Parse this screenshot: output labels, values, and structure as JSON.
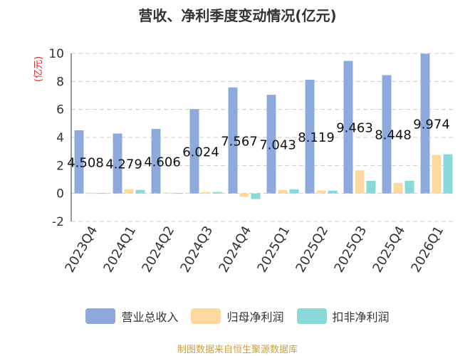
{
  "chart_data": {
    "type": "bar",
    "title": "营收、净利季度变动情况(亿元)",
    "ylabel": "(亿元)",
    "ylim": [
      -2,
      10
    ],
    "yticks": [
      -2,
      0,
      2,
      4,
      6,
      8,
      10
    ],
    "grid": true,
    "legend_position": "bottom",
    "categories": [
      "2023Q4",
      "2024Q1",
      "2024Q2",
      "2024Q3",
      "2024Q4",
      "2025Q1",
      "2025Q2",
      "2025Q3",
      "2025Q4",
      "2026Q1"
    ],
    "series": [
      {
        "name": "营业总收入",
        "color": "#8eaadc",
        "values": [
          4.508,
          4.279,
          4.606,
          6.024,
          7.567,
          7.043,
          8.119,
          9.463,
          8.448,
          9.974
        ],
        "labels": [
          "4.508",
          "4.279",
          "4.606",
          "6.024",
          "7.567",
          "7.043",
          "8.119",
          "9.463",
          "8.448",
          "9.974"
        ]
      },
      {
        "name": "归母净利润",
        "color": "#fdd9a0",
        "values": [
          0.05,
          0.3,
          0.05,
          0.1,
          -0.25,
          0.25,
          0.2,
          1.65,
          0.75,
          2.75
        ]
      },
      {
        "name": "扣非净利润",
        "color": "#8ad8d8",
        "values": [
          0.03,
          0.25,
          0.03,
          0.1,
          -0.4,
          0.3,
          0.2,
          0.9,
          0.9,
          2.8
        ]
      }
    ]
  },
  "source_text": "制图数据来自恒生聚源数据库"
}
